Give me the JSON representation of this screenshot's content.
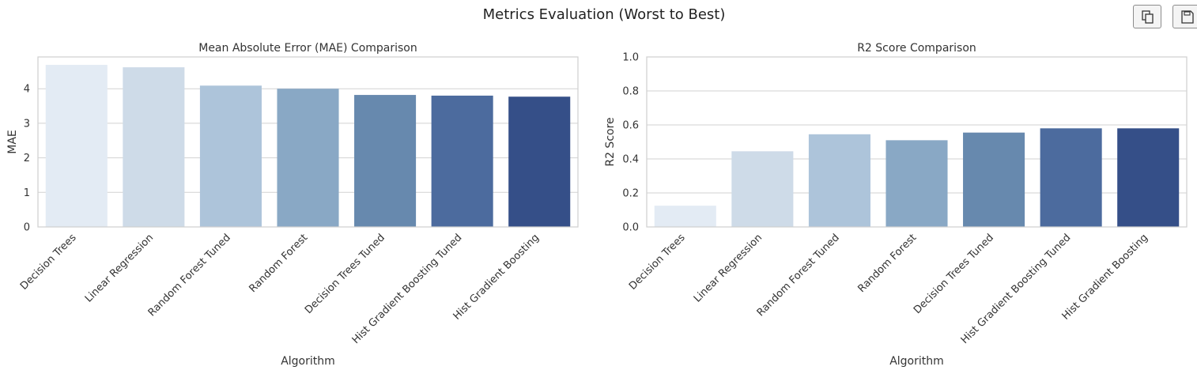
{
  "figure": {
    "title": "Metrics Evaluation (Worst to Best)"
  },
  "toolbar": {
    "copy_icon": "copy-icon",
    "save_icon": "save-icon"
  },
  "colors": {
    "palette": [
      "#e3ebf4",
      "#cedbe8",
      "#adc4da",
      "#89a8c5",
      "#6789ae",
      "#4c6b9e",
      "#354f88"
    ],
    "grid": "#d2d2d2",
    "spine": "#cfcfcf",
    "text": "#333333"
  },
  "chart_data": [
    {
      "type": "bar",
      "title": "Mean Absolute Error (MAE) Comparison",
      "xlabel": "Algorithm",
      "ylabel": "MAE",
      "categories": [
        "Decision Trees",
        "Linear Regression",
        "Random Forest Tuned",
        "Random Forest",
        "Decision Trees Tuned",
        "Hist Gradient Boosting Tuned",
        "Hist Gradient Boosting"
      ],
      "values": [
        4.69,
        4.62,
        4.09,
        4.0,
        3.82,
        3.8,
        3.77
      ],
      "ylim": [
        0,
        4.92
      ],
      "yticks": [
        0,
        1,
        2,
        3,
        4
      ],
      "grid": true,
      "legend": "none"
    },
    {
      "type": "bar",
      "title": "R2 Score Comparison",
      "xlabel": "Algorithm",
      "ylabel": "R2 Score",
      "categories": [
        "Decision Trees",
        "Linear Regression",
        "Random Forest Tuned",
        "Random Forest",
        "Decision Trees Tuned",
        "Hist Gradient Boosting Tuned",
        "Hist Gradient Boosting"
      ],
      "values": [
        0.125,
        0.445,
        0.545,
        0.51,
        0.555,
        0.58,
        0.58
      ],
      "ylim": [
        0,
        1.0
      ],
      "yticks": [
        "0.0",
        "0.2",
        "0.4",
        "0.6",
        "0.8",
        "1.0"
      ],
      "grid": true,
      "legend": "none"
    }
  ]
}
